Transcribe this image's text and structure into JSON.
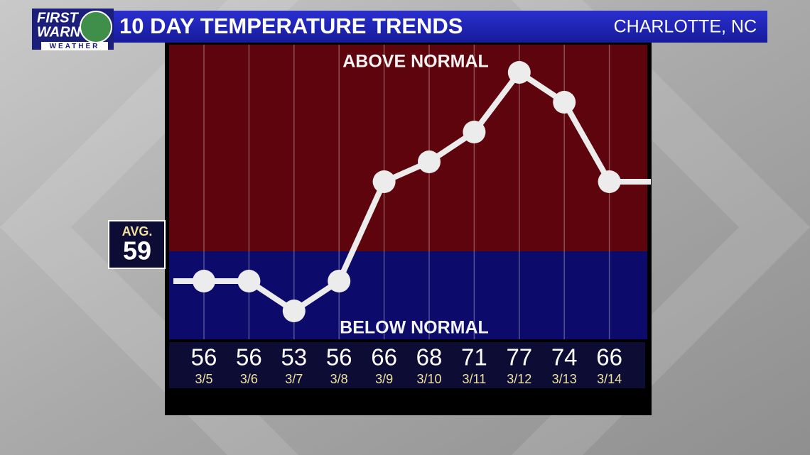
{
  "logo": {
    "line1": "FIRST",
    "line2": "WARN",
    "line3": "WEATHER"
  },
  "chart_data": {
    "type": "line",
    "title": "10 DAY TEMPERATURE TRENDS",
    "location": "CHARLOTTE, NC",
    "above_label": "ABOVE NORMAL",
    "below_label": "BELOW NORMAL",
    "average_label": "AVG.",
    "average": 59,
    "above_color": "#5e040c",
    "below_color": "#0c0a6a",
    "line_color": "#ececec",
    "categories": [
      "3/5",
      "3/6",
      "3/7",
      "3/8",
      "3/9",
      "3/10",
      "3/11",
      "3/12",
      "3/13",
      "3/14"
    ],
    "values": [
      56,
      56,
      53,
      56,
      66,
      68,
      71,
      77,
      74,
      66
    ],
    "ylim": [
      50,
      80
    ]
  }
}
